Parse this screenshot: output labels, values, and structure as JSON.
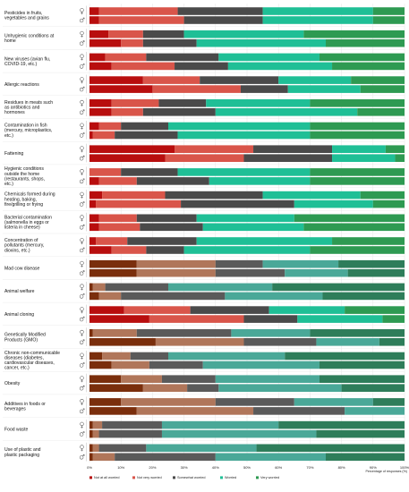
{
  "chart_data": {
    "type": "bar",
    "orientation": "horizontal",
    "stacked": true,
    "percent": true,
    "title": "",
    "xlabel": "Percentage of responses (%)",
    "ylabel": "",
    "xlim": [
      0,
      100
    ],
    "x_ticks": [
      "0%",
      "10%",
      "20%",
      "30%",
      "40%",
      "50%",
      "60%",
      "70%",
      "80%",
      "90%",
      "100%"
    ],
    "grid": false,
    "legend_position": "bottom",
    "series_names": [
      "Not at all worried",
      "Not very worried",
      "Somewhat worried",
      "Worried",
      "Very worried"
    ],
    "colors_default": [
      "#b80e0e",
      "#d9554a",
      "#4a4a4a",
      "#1fbf96",
      "#2e9a52"
    ],
    "colors_alt": [
      "#7a2e0c",
      "#b0765a",
      "#5a5a5a",
      "#4aa898",
      "#2e7d5a"
    ],
    "alt_color_categories": [
      "Mad cow disease",
      "Animal welfare",
      "Genetically Modified Products (GMO)",
      "Chronic non-communicable diseases (diabetes, cardiovascular diseases, cancer, etc.)",
      "Obesity",
      "Additives in foods or beverages",
      "Food waste",
      "Use of plastic and plastic packaging"
    ],
    "categories": [
      {
        "label": "Pesticides in fruits, vegetables and grains",
        "female": [
          3,
          25,
          27,
          35,
          10
        ],
        "male": [
          3,
          27,
          25,
          35,
          10
        ]
      },
      {
        "label": "Unhygienic conditions at home",
        "female": [
          6,
          11,
          13,
          38,
          32
        ],
        "male": [
          10,
          7,
          17,
          41,
          25
        ]
      },
      {
        "label": "New viruses (avian flu, COVID-19, etc.)",
        "female": [
          5,
          13,
          23,
          32,
          27
        ],
        "male": [
          7,
          20,
          17,
          33,
          23
        ]
      },
      {
        "label": "Allergic reactions",
        "female": [
          17,
          18,
          25,
          23,
          17
        ],
        "male": [
          20,
          28,
          15,
          23,
          14
        ]
      },
      {
        "label": "Residues in meats such as antibiotics and hormones",
        "female": [
          7,
          15,
          15,
          33,
          30
        ],
        "male": [
          7,
          10,
          23,
          45,
          15
        ]
      },
      {
        "label": "Contamination in fish (mercury, microplastics, etc.)",
        "female": [
          3,
          7,
          15,
          45,
          30
        ],
        "male": [
          1,
          7,
          20,
          42,
          30
        ]
      },
      {
        "label": "Fattening",
        "female": [
          27,
          25,
          25,
          17,
          6
        ],
        "male": [
          24,
          25,
          28,
          20,
          3
        ]
      },
      {
        "label": "Hygienic conditions outside the home (restaurants, shops, etc.)",
        "female": [
          0,
          10,
          18,
          42,
          30
        ],
        "male": [
          3,
          12,
          23,
          32,
          30
        ]
      },
      {
        "label": "Chemicals formed during heating, baking, fire/grilling or frying",
        "female": [
          4,
          20,
          31,
          31,
          14
        ],
        "male": [
          2,
          27,
          36,
          25,
          10
        ]
      },
      {
        "label": "Bacterial contamination (salmonella in eggs or listeria in cheese)",
        "female": [
          3,
          12,
          19,
          31,
          35
        ],
        "male": [
          3,
          13,
          20,
          32,
          32
        ]
      },
      {
        "label": "Concentration of pollutants (mercury, dioxins, etc.)",
        "female": [
          2,
          10,
          22,
          43,
          23
        ],
        "male": [
          7,
          11,
          12,
          40,
          30
        ]
      },
      {
        "label": "Mad cow disease",
        "female": [
          15,
          25,
          15,
          24,
          21
        ],
        "male": [
          15,
          25,
          22,
          20,
          18
        ]
      },
      {
        "label": "Animal welfare",
        "female": [
          1,
          4,
          20,
          33,
          42
        ],
        "male": [
          3,
          7,
          33,
          31,
          26
        ]
      },
      {
        "label": "Animal cloning",
        "female": [
          11,
          21,
          25,
          24,
          19
        ],
        "male": [
          19,
          30,
          17,
          27,
          7
        ]
      },
      {
        "label": "Genetically Modified Products (GMO)",
        "female": [
          1,
          14,
          30,
          25,
          30
        ],
        "male": [
          21,
          28,
          23,
          20,
          8
        ]
      },
      {
        "label": "Chronic non-communicable diseases (diabetes, cardiovascular diseases, cancer, etc.)",
        "female": [
          4,
          9,
          12,
          37,
          38
        ],
        "male": [
          7,
          12,
          17,
          37,
          27
        ]
      },
      {
        "label": "Obesity",
        "female": [
          10,
          13,
          17,
          33,
          27
        ],
        "male": [
          17,
          14,
          10,
          39,
          20
        ]
      },
      {
        "label": "Additives in foods or beverages",
        "female": [
          10,
          30,
          25,
          25,
          10
        ],
        "male": [
          15,
          37,
          29,
          19,
          0
        ]
      },
      {
        "label": "Food waste",
        "female": [
          1,
          3,
          19,
          37,
          40
        ],
        "male": [
          1,
          2,
          20,
          49,
          28
        ]
      },
      {
        "label": "Use of plastic and plastic packaging",
        "female": [
          1,
          2,
          15,
          35,
          47
        ],
        "male": [
          1,
          7,
          32,
          35,
          25
        ]
      }
    ]
  }
}
